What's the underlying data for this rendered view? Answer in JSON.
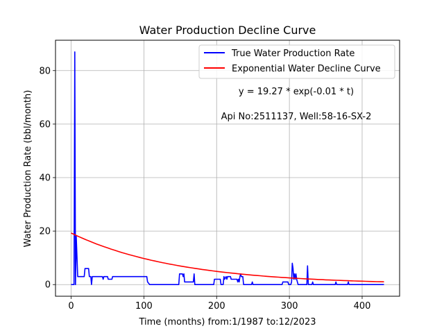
{
  "chart_data": {
    "type": "line",
    "title": "Water Production Decline Curve",
    "xlabel": "Time (months) from:1/1987 to:12/2023",
    "ylabel": "Water Production Rate (bbl/month)",
    "xlim": [
      -21.5,
      451.5
    ],
    "ylim": [
      -4.35,
      91.35
    ],
    "xticks": [
      0,
      100,
      200,
      300,
      400
    ],
    "yticks": [
      0,
      20,
      40,
      60,
      80
    ],
    "grid": true,
    "legend_position": "top-right",
    "annotations": [
      "y = 19.27 * exp(-0.01 * t)",
      "Api No:2511137, Well:58-16-SX-2"
    ],
    "series": [
      {
        "name": "True Water Production Rate",
        "color": "#0000ff",
        "points": [
          [
            0,
            0
          ],
          [
            4,
            0
          ],
          [
            5,
            87
          ],
          [
            6,
            0
          ],
          [
            7,
            18
          ],
          [
            9,
            3
          ],
          [
            18,
            3
          ],
          [
            19,
            6
          ],
          [
            24,
            6
          ],
          [
            25,
            3
          ],
          [
            27,
            3
          ],
          [
            28,
            0
          ],
          [
            29,
            3
          ],
          [
            43,
            3
          ],
          [
            44,
            2
          ],
          [
            45,
            3
          ],
          [
            50,
            3
          ],
          [
            51,
            2
          ],
          [
            56,
            2
          ],
          [
            57,
            3
          ],
          [
            104,
            3
          ],
          [
            105,
            1
          ],
          [
            108,
            0
          ],
          [
            148,
            0
          ],
          [
            149,
            4
          ],
          [
            153,
            4
          ],
          [
            154,
            3
          ],
          [
            155,
            4
          ],
          [
            156,
            1
          ],
          [
            168,
            1
          ],
          [
            169,
            4
          ],
          [
            170,
            0
          ],
          [
            196,
            0
          ],
          [
            197,
            2
          ],
          [
            205,
            2
          ],
          [
            206,
            0
          ],
          [
            209,
            0
          ],
          [
            210,
            3
          ],
          [
            211,
            2
          ],
          [
            213,
            3
          ],
          [
            214,
            2
          ],
          [
            215,
            3
          ],
          [
            219,
            3
          ],
          [
            220,
            2
          ],
          [
            228,
            2
          ],
          [
            229,
            1
          ],
          [
            230,
            2
          ],
          [
            231,
            1
          ],
          [
            232,
            3
          ],
          [
            233,
            4
          ],
          [
            234,
            3
          ],
          [
            236,
            3
          ],
          [
            237,
            0
          ],
          [
            248,
            0
          ],
          [
            249,
            1
          ],
          [
            250,
            0
          ],
          [
            290,
            0
          ],
          [
            291,
            1
          ],
          [
            298,
            1
          ],
          [
            299,
            0
          ],
          [
            302,
            0
          ],
          [
            303,
            1
          ],
          [
            304,
            8
          ],
          [
            305,
            6
          ],
          [
            306,
            2
          ],
          [
            307,
            4
          ],
          [
            308,
            2
          ],
          [
            309,
            4
          ],
          [
            310,
            2
          ],
          [
            312,
            0
          ],
          [
            324,
            0
          ],
          [
            325,
            7
          ],
          [
            326,
            0
          ],
          [
            331,
            0
          ],
          [
            332,
            1
          ],
          [
            333,
            0
          ],
          [
            363,
            0
          ],
          [
            364,
            1
          ],
          [
            365,
            0
          ],
          [
            380,
            0
          ],
          [
            381,
            1
          ],
          [
            382,
            0
          ],
          [
            430,
            0
          ]
        ]
      },
      {
        "name": "Exponential Water Decline Curve",
        "color": "#ff0000",
        "function": {
          "a": 19.27,
          "b": 0.0068,
          "t_start": 0,
          "t_end": 430
        }
      }
    ]
  }
}
